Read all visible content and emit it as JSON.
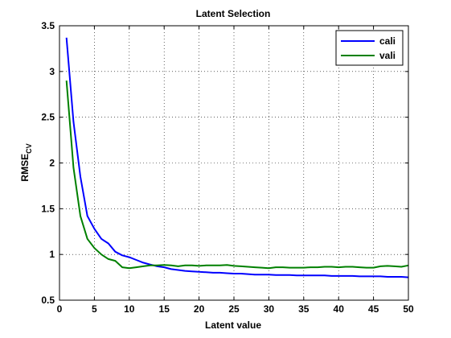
{
  "chart_data": {
    "type": "line",
    "title": "Latent Selection",
    "xlabel": "Latent value",
    "ylabel": "RMSE",
    "ylabel_subscript": "CV",
    "xlim": [
      0,
      50
    ],
    "ylim": [
      0.5,
      3.5
    ],
    "xticks": [
      0,
      5,
      10,
      15,
      20,
      25,
      30,
      35,
      40,
      45,
      50
    ],
    "yticks": [
      0.5,
      1,
      1.5,
      2,
      2.5,
      3,
      3.5
    ],
    "xtick_labels": [
      "0",
      "5",
      "10",
      "15",
      "20",
      "25",
      "30",
      "35",
      "40",
      "45",
      "50"
    ],
    "ytick_labels": [
      "0.5",
      "1",
      "1.5",
      "2",
      "2.5",
      "3",
      "3.5"
    ],
    "grid": true,
    "legend_position": "top-right",
    "series": [
      {
        "name": "cali",
        "color": "#0000ff",
        "x": [
          1,
          2,
          3,
          4,
          5,
          6,
          7,
          8,
          9,
          10,
          11,
          12,
          13,
          14,
          15,
          16,
          17,
          18,
          19,
          20,
          21,
          22,
          23,
          24,
          25,
          26,
          27,
          28,
          29,
          30,
          31,
          32,
          33,
          34,
          35,
          36,
          37,
          38,
          39,
          40,
          41,
          42,
          43,
          44,
          45,
          46,
          47,
          48,
          49,
          50
        ],
        "values": [
          3.37,
          2.45,
          1.85,
          1.42,
          1.28,
          1.17,
          1.12,
          1.03,
          0.99,
          0.97,
          0.94,
          0.91,
          0.89,
          0.87,
          0.86,
          0.84,
          0.83,
          0.82,
          0.815,
          0.81,
          0.805,
          0.8,
          0.8,
          0.795,
          0.79,
          0.79,
          0.785,
          0.78,
          0.78,
          0.78,
          0.775,
          0.775,
          0.775,
          0.77,
          0.77,
          0.77,
          0.77,
          0.77,
          0.765,
          0.765,
          0.765,
          0.765,
          0.76,
          0.76,
          0.76,
          0.76,
          0.755,
          0.755,
          0.755,
          0.75
        ]
      },
      {
        "name": "vali",
        "color": "#008000",
        "x": [
          1,
          2,
          3,
          4,
          5,
          6,
          7,
          8,
          9,
          10,
          11,
          12,
          13,
          14,
          15,
          16,
          17,
          18,
          19,
          20,
          21,
          22,
          23,
          24,
          25,
          26,
          27,
          28,
          29,
          30,
          31,
          32,
          33,
          34,
          35,
          36,
          37,
          38,
          39,
          40,
          41,
          42,
          43,
          44,
          45,
          46,
          47,
          48,
          49,
          50
        ],
        "values": [
          2.9,
          1.95,
          1.42,
          1.17,
          1.07,
          1.0,
          0.95,
          0.93,
          0.86,
          0.85,
          0.86,
          0.87,
          0.88,
          0.88,
          0.885,
          0.88,
          0.87,
          0.88,
          0.88,
          0.875,
          0.88,
          0.88,
          0.88,
          0.885,
          0.875,
          0.87,
          0.865,
          0.86,
          0.855,
          0.85,
          0.86,
          0.86,
          0.855,
          0.855,
          0.855,
          0.86,
          0.86,
          0.865,
          0.865,
          0.86,
          0.865,
          0.865,
          0.86,
          0.855,
          0.855,
          0.87,
          0.875,
          0.87,
          0.865,
          0.88
        ]
      }
    ]
  }
}
